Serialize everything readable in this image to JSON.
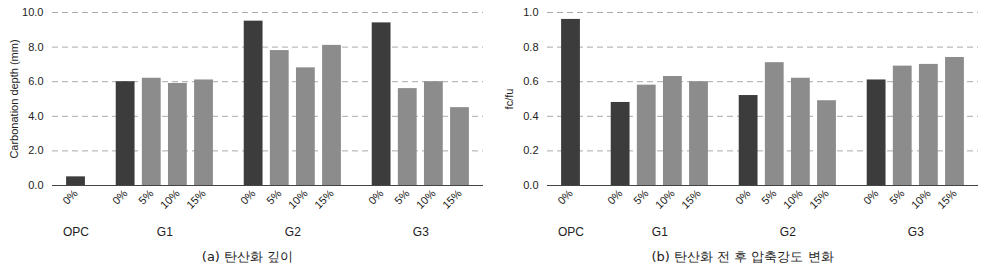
{
  "chart_data": [
    {
      "type": "bar",
      "caption": "(a) 탄산화 깊이",
      "y_label": "Carbonation depth (mm)",
      "categories": [
        "0%",
        "0%",
        "5%",
        "10%",
        "15%",
        "0%",
        "5%",
        "10%",
        "15%",
        "0%",
        "5%",
        "10%",
        "15%"
      ],
      "groups": [
        "OPC",
        "G1",
        "G1",
        "G1",
        "G1",
        "G2",
        "G2",
        "G2",
        "G2",
        "G3",
        "G3",
        "G3",
        "G3"
      ],
      "values": [
        0.5,
        6.0,
        6.2,
        5.9,
        6.1,
        9.5,
        7.8,
        6.8,
        8.1,
        9.4,
        5.6,
        6.0,
        4.5
      ],
      "colors": [
        "#3c3c3c",
        "#3c3c3c",
        "#8c8c8c",
        "#8c8c8c",
        "#8c8c8c",
        "#3c3c3c",
        "#8c8c8c",
        "#8c8c8c",
        "#8c8c8c",
        "#3c3c3c",
        "#8c8c8c",
        "#8c8c8c",
        "#8c8c8c"
      ],
      "ylim": [
        0,
        10
      ],
      "yticks": [
        {
          "value": 0,
          "label": "0.0"
        },
        {
          "value": 2,
          "label": "2.0"
        },
        {
          "value": 4,
          "label": "4.0"
        },
        {
          "value": 6,
          "label": "6.0"
        },
        {
          "value": 8,
          "label": "8.0"
        },
        {
          "value": 10,
          "label": "10.0"
        }
      ],
      "grid": true
    },
    {
      "type": "bar",
      "caption": "(b) 탄산화 전 후 압축강도 변화",
      "y_label": "fc/fu",
      "categories": [
        "0%",
        "0%",
        "5%",
        "10%",
        "15%",
        "0%",
        "5%",
        "10%",
        "15%",
        "0%",
        "5%",
        "10%",
        "15%"
      ],
      "groups": [
        "OPC",
        "G1",
        "G1",
        "G1",
        "G1",
        "G2",
        "G2",
        "G2",
        "G2",
        "G3",
        "G3",
        "G3",
        "G3"
      ],
      "values": [
        0.96,
        0.48,
        0.58,
        0.63,
        0.6,
        0.52,
        0.71,
        0.62,
        0.49,
        0.61,
        0.69,
        0.7,
        0.74
      ],
      "colors": [
        "#3c3c3c",
        "#3c3c3c",
        "#8c8c8c",
        "#8c8c8c",
        "#8c8c8c",
        "#3c3c3c",
        "#8c8c8c",
        "#8c8c8c",
        "#8c8c8c",
        "#3c3c3c",
        "#8c8c8c",
        "#8c8c8c",
        "#8c8c8c"
      ],
      "ylim": [
        0,
        1
      ],
      "yticks": [
        {
          "value": 0,
          "label": "0.0"
        },
        {
          "value": 0.2,
          "label": "0.2"
        },
        {
          "value": 0.4,
          "label": "0.4"
        },
        {
          "value": 0.6,
          "label": "0.6"
        },
        {
          "value": 0.8,
          "label": "0.8"
        },
        {
          "value": 1,
          "label": "1.0"
        }
      ],
      "grid": true
    }
  ]
}
